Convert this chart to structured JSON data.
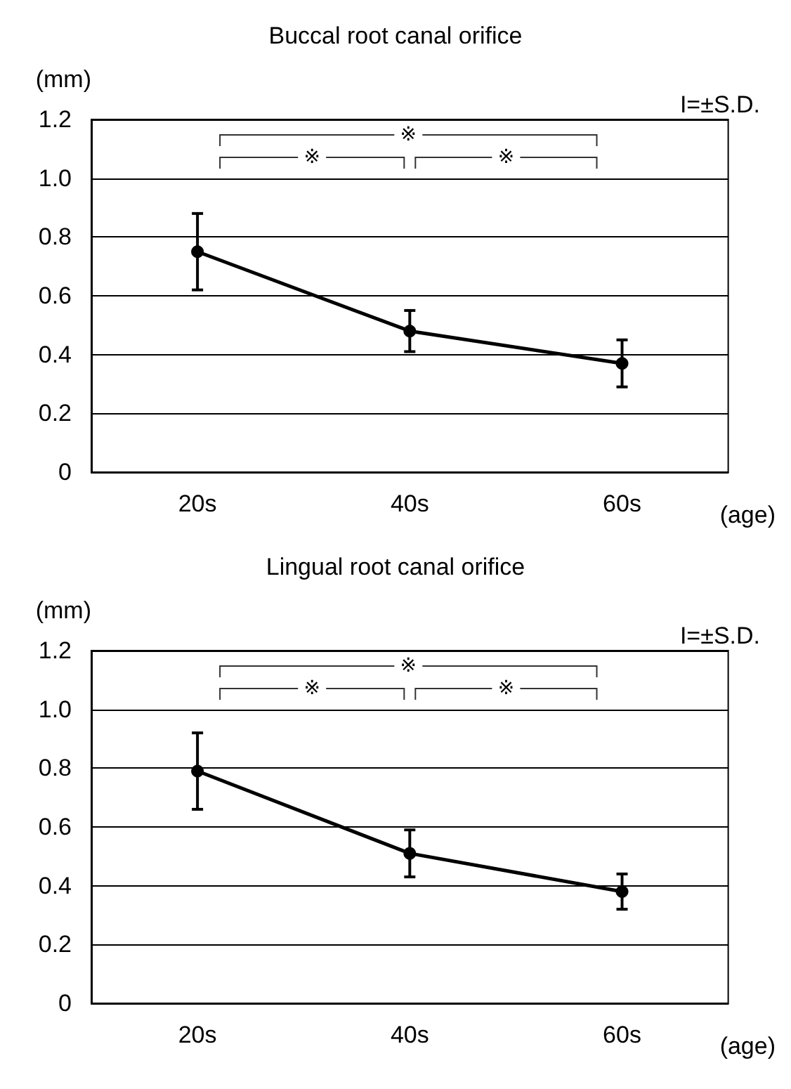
{
  "chart_data": [
    {
      "type": "line",
      "title": "Buccal root canal orifice",
      "xlabel": "(age)",
      "ylabel": "(mm)",
      "annotations": [
        "I=±S.D.",
        "※",
        "※",
        "※"
      ],
      "categories": [
        "20s",
        "40s",
        "60s"
      ],
      "series": [
        {
          "color": "#000000",
          "values": [
            0.75,
            0.48,
            0.37
          ],
          "errors": [
            [
              0.62,
              0.88
            ],
            [
              0.41,
              0.55
            ],
            [
              0.29,
              0.45
            ]
          ]
        }
      ],
      "ylim": [
        0,
        1.2
      ],
      "yticks": [
        0,
        0.2,
        0.4,
        0.6,
        0.8,
        {
          "value": 1,
          "label": "1.0"
        },
        1.2
      ],
      "grid": "y",
      "marker": "circle",
      "line_style": "solid"
    },
    {
      "type": "line",
      "title": "Lingual root canal orifice",
      "xlabel": "(age)",
      "ylabel": "(mm)",
      "annotations": [
        "I=±S.D.",
        "※",
        "※",
        "※"
      ],
      "categories": [
        "20s",
        "40s",
        "60s"
      ],
      "series": [
        {
          "color": "#000000",
          "values": [
            0.79,
            0.51,
            0.38
          ],
          "errors": [
            [
              0.66,
              0.92
            ],
            [
              0.43,
              0.59
            ],
            [
              0.32,
              0.44
            ]
          ]
        }
      ],
      "ylim": [
        0,
        1.2
      ],
      "yticks": [
        0,
        0.2,
        0.4,
        0.6,
        0.8,
        {
          "value": 1,
          "label": "1.0"
        },
        1.2
      ],
      "grid": "y",
      "marker": "circle",
      "line_style": "solid"
    }
  ]
}
